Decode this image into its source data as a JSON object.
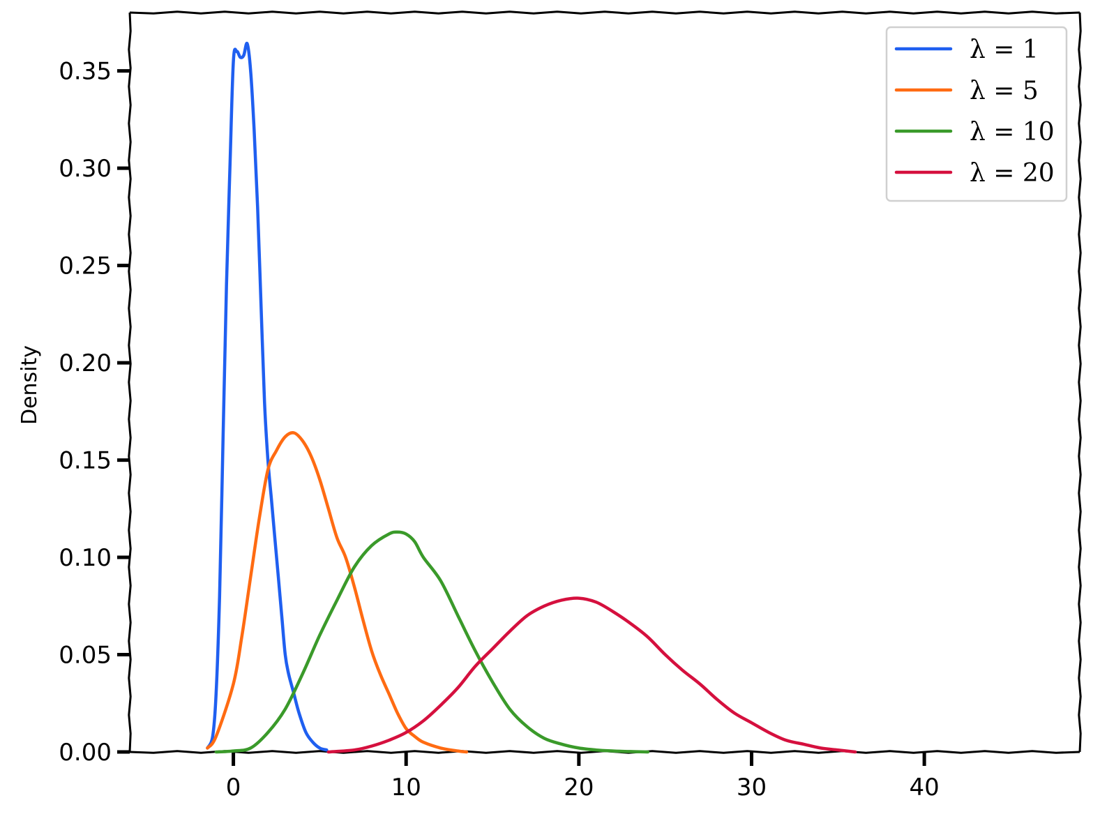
{
  "chart_data": {
    "type": "line",
    "title": "",
    "xlabel": "",
    "ylabel": "Density",
    "xlim": [
      -6,
      49
    ],
    "ylim": [
      0,
      0.38
    ],
    "xticks": [
      0,
      10,
      20,
      30,
      40
    ],
    "xtick_labels": [
      "0",
      "10",
      "20",
      "30",
      "40"
    ],
    "yticks": [
      0,
      0.05,
      0.1,
      0.15,
      0.2,
      0.25,
      0.3,
      0.35
    ],
    "ytick_labels": [
      "0.00",
      "0.05",
      "0.10",
      "0.15",
      "0.20",
      "0.25",
      "0.30",
      "0.35"
    ],
    "grid": false,
    "legend_position": "top-right",
    "series": [
      {
        "name": "λ = 1",
        "color": "#1f5ff0",
        "x": [
          -1.5,
          -1.2,
          -1.0,
          -0.8,
          -0.6,
          -0.4,
          -0.2,
          0.0,
          0.2,
          0.4,
          0.6,
          0.8,
          1.0,
          1.2,
          1.4,
          1.6,
          1.8,
          2.0,
          2.2,
          2.4,
          2.6,
          2.8,
          3.0,
          3.2,
          3.5,
          3.8,
          4.2,
          4.6,
          5.0,
          5.4
        ],
        "y": [
          0.002,
          0.008,
          0.03,
          0.08,
          0.16,
          0.24,
          0.3,
          0.355,
          0.36,
          0.357,
          0.358,
          0.364,
          0.35,
          0.32,
          0.28,
          0.23,
          0.18,
          0.15,
          0.13,
          0.11,
          0.09,
          0.07,
          0.05,
          0.04,
          0.03,
          0.02,
          0.01,
          0.005,
          0.002,
          0.001
        ]
      },
      {
        "name": "λ = 5",
        "color": "#ff6b12",
        "x": [
          -1.5,
          -1.0,
          0.0,
          0.5,
          1.0,
          1.5,
          2.0,
          2.5,
          3.0,
          3.5,
          4.0,
          4.5,
          5.0,
          5.5,
          6.0,
          6.5,
          7.0,
          7.5,
          8.0,
          8.5,
          9.0,
          9.5,
          10.0,
          10.5,
          11.0,
          12.0,
          13.0,
          13.5
        ],
        "y": [
          0.002,
          0.008,
          0.035,
          0.06,
          0.09,
          0.12,
          0.145,
          0.155,
          0.162,
          0.164,
          0.16,
          0.152,
          0.14,
          0.125,
          0.11,
          0.1,
          0.085,
          0.068,
          0.052,
          0.04,
          0.03,
          0.02,
          0.012,
          0.008,
          0.005,
          0.002,
          0.0005,
          0.0
        ]
      },
      {
        "name": "λ = 10",
        "color": "#3a9a2a",
        "x": [
          -1.0,
          0.0,
          1.0,
          2.0,
          3.0,
          4.0,
          5.0,
          6.0,
          7.0,
          8.0,
          9.0,
          9.5,
          10.0,
          10.5,
          11.0,
          12.0,
          13.0,
          14.0,
          15.0,
          16.0,
          17.0,
          18.0,
          19.0,
          20.0,
          21.0,
          22.0,
          23.0,
          24.0
        ],
        "y": [
          0.0,
          0.0005,
          0.002,
          0.01,
          0.022,
          0.04,
          0.06,
          0.078,
          0.095,
          0.106,
          0.112,
          0.113,
          0.112,
          0.108,
          0.1,
          0.088,
          0.07,
          0.052,
          0.036,
          0.022,
          0.013,
          0.007,
          0.004,
          0.002,
          0.001,
          0.0005,
          0.0002,
          0.0
        ]
      },
      {
        "name": "λ = 20",
        "color": "#d5103e",
        "x": [
          5.5,
          7.0,
          8.0,
          9.0,
          10.0,
          11.0,
          12.0,
          13.0,
          14.0,
          15.0,
          16.0,
          17.0,
          18.0,
          19.0,
          20.0,
          21.0,
          22.0,
          23.0,
          24.0,
          25.0,
          26.0,
          27.0,
          28.0,
          29.0,
          30.0,
          31.0,
          32.0,
          33.0,
          34.0,
          35.0,
          36.0
        ],
        "y": [
          0.0,
          0.001,
          0.003,
          0.006,
          0.01,
          0.016,
          0.024,
          0.033,
          0.044,
          0.053,
          0.062,
          0.07,
          0.075,
          0.078,
          0.079,
          0.077,
          0.072,
          0.066,
          0.059,
          0.05,
          0.042,
          0.035,
          0.027,
          0.02,
          0.015,
          0.01,
          0.006,
          0.004,
          0.002,
          0.001,
          0.0
        ]
      }
    ]
  }
}
